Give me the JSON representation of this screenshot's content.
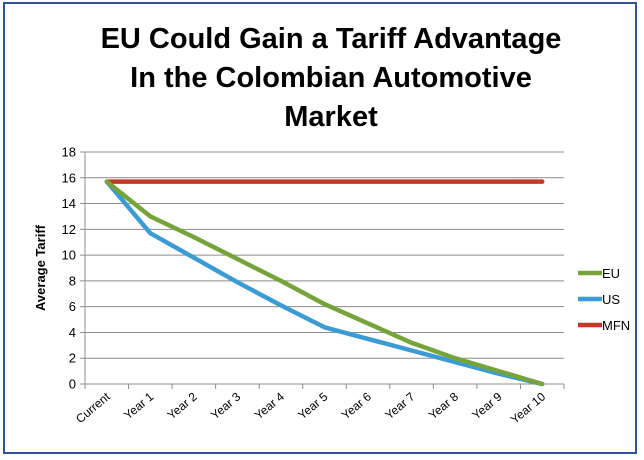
{
  "chart_data": {
    "type": "line",
    "title_lines": [
      "EU Could Gain a Tariff Advantage",
      "In the Colombian Automotive",
      "Market"
    ],
    "xlabel": "",
    "ylabel": "Average Tariff",
    "categories": [
      "Current",
      "Year 1",
      "Year 2",
      "Year 3",
      "Year 4",
      "Year 5",
      "Year 6",
      "Year 7",
      "Year 8",
      "Year 9",
      "Year 10"
    ],
    "yticks": [
      "0",
      "2",
      "4",
      "6",
      "8",
      "10",
      "12",
      "14",
      "16",
      "18"
    ],
    "ylim": [
      0,
      18
    ],
    "grid": true,
    "legend_position": "right",
    "series": [
      {
        "name": "EU",
        "color": "#77a33b",
        "values": [
          15.7,
          13.0,
          11.4,
          9.7,
          8.0,
          6.2,
          4.7,
          3.2,
          2.0,
          1.0,
          0
        ]
      },
      {
        "name": "US",
        "color": "#3a9bd5",
        "values": [
          15.7,
          11.7,
          9.8,
          7.9,
          6.1,
          4.4,
          3.5,
          2.6,
          1.7,
          0.8,
          0
        ]
      },
      {
        "name": "MFN",
        "color": "#c0392b",
        "values": [
          15.7,
          15.7,
          15.7,
          15.7,
          15.7,
          15.7,
          15.7,
          15.7,
          15.7,
          15.7,
          15.7
        ]
      }
    ]
  }
}
